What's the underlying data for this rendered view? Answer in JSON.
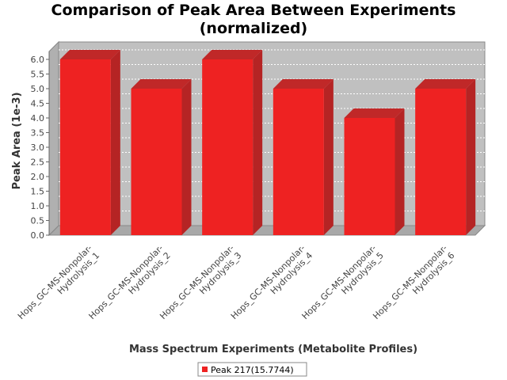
{
  "chart_data": {
    "type": "bar",
    "title_lines": [
      "Comparison of Peak Area Between Experiments",
      "(normalized)"
    ],
    "xlabel": "Mass Spectrum Experiments (Metabolite Profiles)",
    "ylabel": "Peak Area (1e-3)",
    "categories": [
      [
        "Hops_GC-MS-Nonpolar-",
        "Hydrolysis_1"
      ],
      [
        "Hops_GC-MS-Nonpolar-",
        "Hydrolysis_2"
      ],
      [
        "Hops_GC-MS-Nonpolar-",
        "Hydrolysis_3"
      ],
      [
        "Hops_GC-MS-Nonpolar-",
        "Hydrolysis_4"
      ],
      [
        "Hops_GC-MS-Nonpolar-",
        "Hydrolysis_5"
      ],
      [
        "Hops_GC-MS-Nonpolar-",
        "Hydrolysis_6"
      ]
    ],
    "series": [
      {
        "name": "Peak 217(15.7744)",
        "values": [
          6.0,
          5.0,
          6.0,
          5.0,
          4.0,
          5.0
        ],
        "color": "#ee2222"
      }
    ],
    "ylim": [
      0,
      6.0
    ],
    "yticks": [
      "0.0",
      "0.5",
      "1.0",
      "1.5",
      "2.0",
      "2.5",
      "3.0",
      "3.5",
      "4.0",
      "4.5",
      "5.0",
      "5.5",
      "6.0"
    ],
    "grid": true,
    "legend_position": "bottom-center",
    "colors": {
      "plot_background": "#c0c0c0",
      "bar_face": "#ee2222",
      "bar_top": "#c02828",
      "bar_side": "#b52424",
      "grid": "#ffffff"
    }
  }
}
